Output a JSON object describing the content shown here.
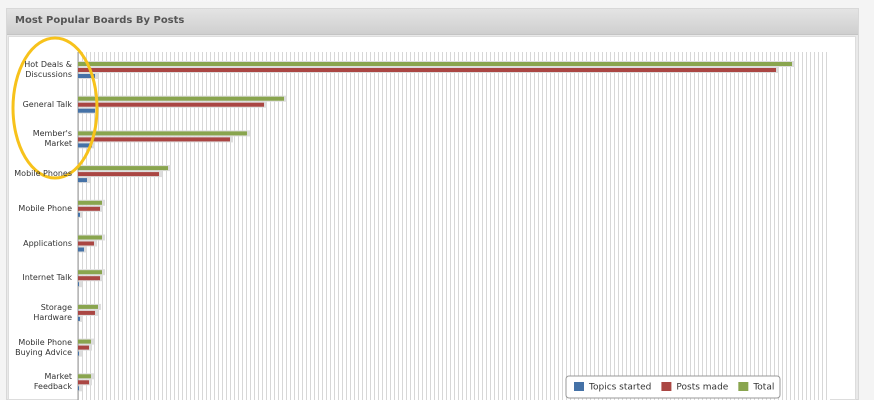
{
  "chart_data": {
    "type": "hbar",
    "title": "Most Popular Boards By Posts",
    "categories": [
      "Hot Deals & Discussions",
      "General Talk",
      "Member's Market",
      "Mobile Phones",
      "Mobile Phone",
      "Applications",
      "Internet Talk",
      "Storage Hardware",
      "Mobile Phone Buying Advice",
      "Market Feedback"
    ],
    "series": [
      {
        "name": "Topics started",
        "color": "#4572a7",
        "values": [
          17,
          17,
          14,
          9,
          2,
          6,
          1,
          2,
          1,
          1
        ]
      },
      {
        "name": "Posts made",
        "color": "#aa4643",
        "values": [
          698,
          186,
          152,
          81,
          22,
          16,
          22,
          17,
          11,
          11
        ]
      },
      {
        "name": "Total",
        "color": "#89a54e",
        "values": [
          714,
          206,
          169,
          90,
          24,
          24,
          24,
          20,
          13,
          13
        ]
      }
    ],
    "xlim": [
      0,
      752
    ],
    "grid": true,
    "legend": "bottom-right"
  }
}
